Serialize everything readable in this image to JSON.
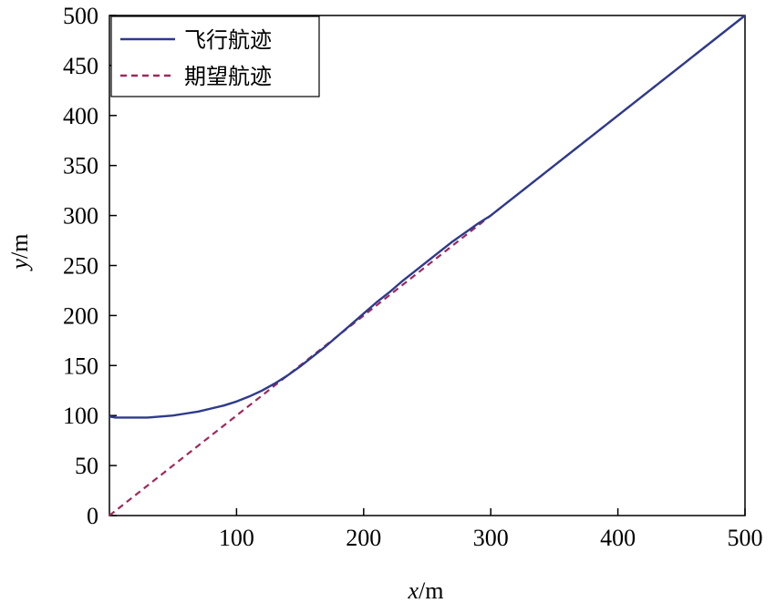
{
  "chart_data": {
    "type": "line",
    "title": "",
    "xlabel_var": "x",
    "xlabel_unit": "/m",
    "ylabel_var": "y",
    "ylabel_unit": "/m",
    "xlim": [
      0,
      500
    ],
    "ylim": [
      0,
      500
    ],
    "xticks": [
      100,
      200,
      300,
      400,
      500
    ],
    "yticks": [
      0,
      50,
      100,
      150,
      200,
      250,
      300,
      350,
      400,
      450,
      500
    ],
    "grid": false,
    "legend_position": "top-left",
    "series": [
      {
        "name": "飞行航迹",
        "style": "solid",
        "color": "#2e3a8c",
        "x": [
          0,
          5,
          10,
          20,
          30,
          40,
          50,
          60,
          70,
          80,
          90,
          100,
          110,
          120,
          130,
          140,
          150,
          160,
          170,
          180,
          190,
          200,
          210,
          220,
          230,
          240,
          250,
          260,
          270,
          280,
          290,
          300,
          350,
          400,
          450,
          500
        ],
        "y": [
          99,
          98,
          98,
          98,
          98,
          99,
          100,
          102,
          104,
          107,
          110,
          114,
          119,
          125,
          132,
          140,
          149,
          159,
          169,
          180,
          191,
          202,
          213,
          223,
          234,
          244,
          254,
          264,
          274,
          283,
          292,
          300,
          350,
          400,
          450,
          500
        ]
      },
      {
        "name": "期望航迹",
        "style": "dashed",
        "color": "#a0285a",
        "x": [
          0,
          500
        ],
        "y": [
          0,
          500
        ]
      }
    ]
  }
}
